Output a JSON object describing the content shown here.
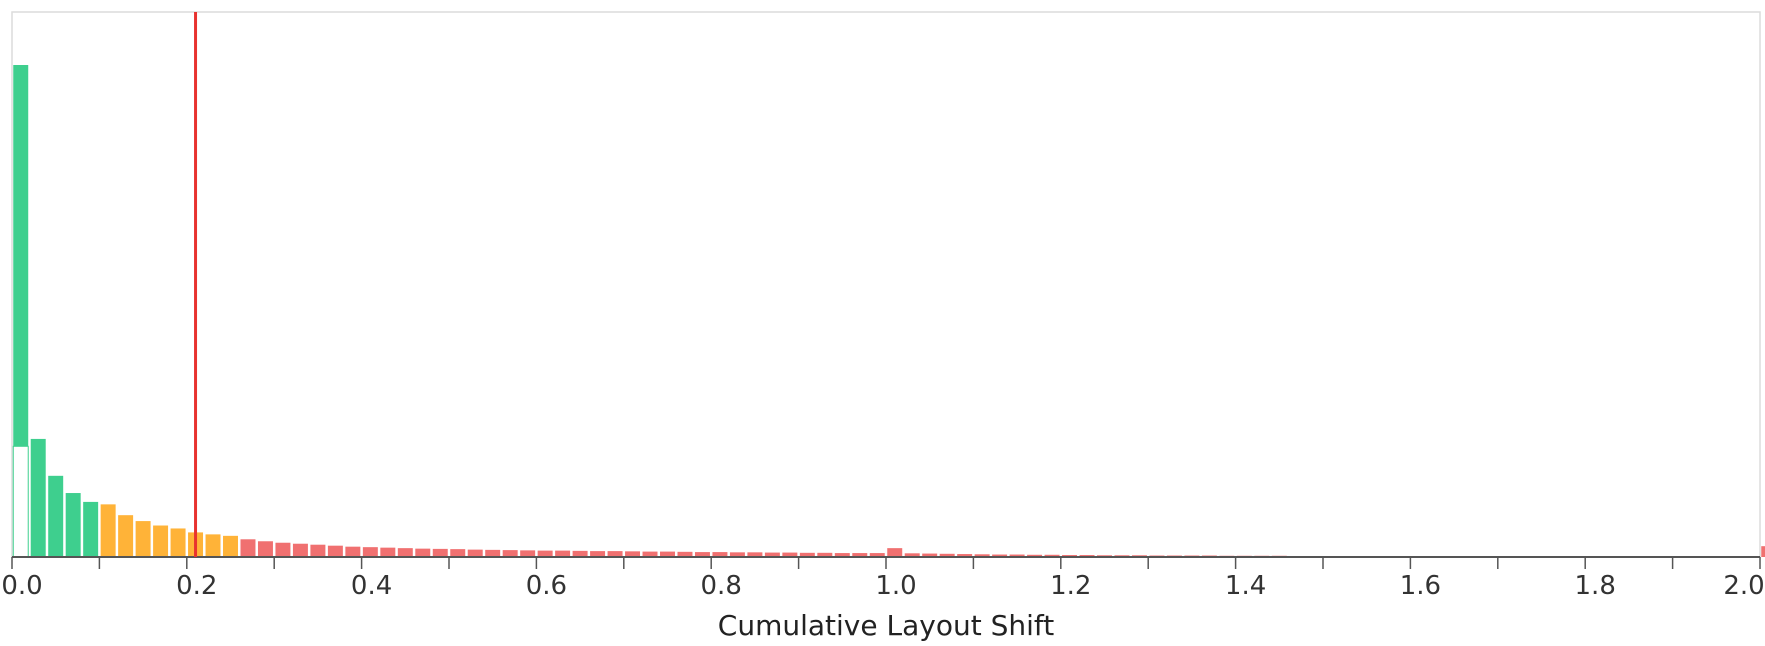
{
  "chart_data": {
    "type": "bar",
    "title": "",
    "xlabel": "Cumulative Layout Shift",
    "ylabel": "",
    "xlim": [
      0,
      2.0
    ],
    "ylim": [
      0,
      100
    ],
    "grid": false,
    "legend": "none",
    "bin_width": 0.02,
    "x_ticks": [
      0.0,
      0.2,
      0.4,
      0.6,
      0.8,
      1.0,
      1.2,
      1.4,
      1.6,
      1.8,
      2.0
    ],
    "x_tick_labels": [
      "0.0",
      "0.2",
      "0.4",
      "0.6",
      "0.8",
      "1.0",
      "1.2",
      "1.4",
      "1.6",
      "1.8",
      "2.0"
    ],
    "reference_line": {
      "x": 0.21,
      "color": "#e8322f"
    },
    "colors": {
      "good": "#3ecf8e",
      "needs_improvement": "#ffb338",
      "poor": "#f07070"
    },
    "thresholds": {
      "good_max": 0.1,
      "needs_improvement_max": 0.26
    },
    "highlight_bar": {
      "x": 0.0,
      "value": 22.5
    },
    "values": [
      100,
      24.0,
      16.5,
      13.0,
      11.2,
      10.7,
      8.5,
      7.3,
      6.4,
      5.8,
      5.0,
      4.6,
      4.3,
      3.6,
      3.2,
      2.9,
      2.7,
      2.5,
      2.3,
      2.1,
      2.0,
      1.9,
      1.8,
      1.7,
      1.65,
      1.6,
      1.5,
      1.45,
      1.4,
      1.35,
      1.3,
      1.3,
      1.25,
      1.2,
      1.2,
      1.15,
      1.1,
      1.1,
      1.05,
      1.0,
      1.0,
      0.95,
      0.95,
      0.9,
      0.9,
      0.85,
      0.85,
      0.8,
      0.8,
      0.8,
      1.8,
      0.75,
      0.7,
      0.65,
      0.6,
      0.55,
      0.5,
      0.5,
      0.45,
      0.45,
      0.4,
      0.4,
      0.35,
      0.35,
      0.35,
      0.3,
      0.3,
      0.3,
      0.3,
      0.25,
      0.25,
      0.25,
      0.25,
      0.2,
      0.2,
      0.2,
      0.2,
      0.2,
      0.2,
      0.15,
      0.15,
      0.15,
      0.15,
      0.15,
      0.15,
      0.15,
      0.1,
      0.1,
      0.1,
      0.1,
      0.1,
      0.1,
      0.1,
      0.1,
      0.1,
      0.1,
      0.1,
      0.1,
      0.1,
      0.1,
      2.2
    ]
  }
}
